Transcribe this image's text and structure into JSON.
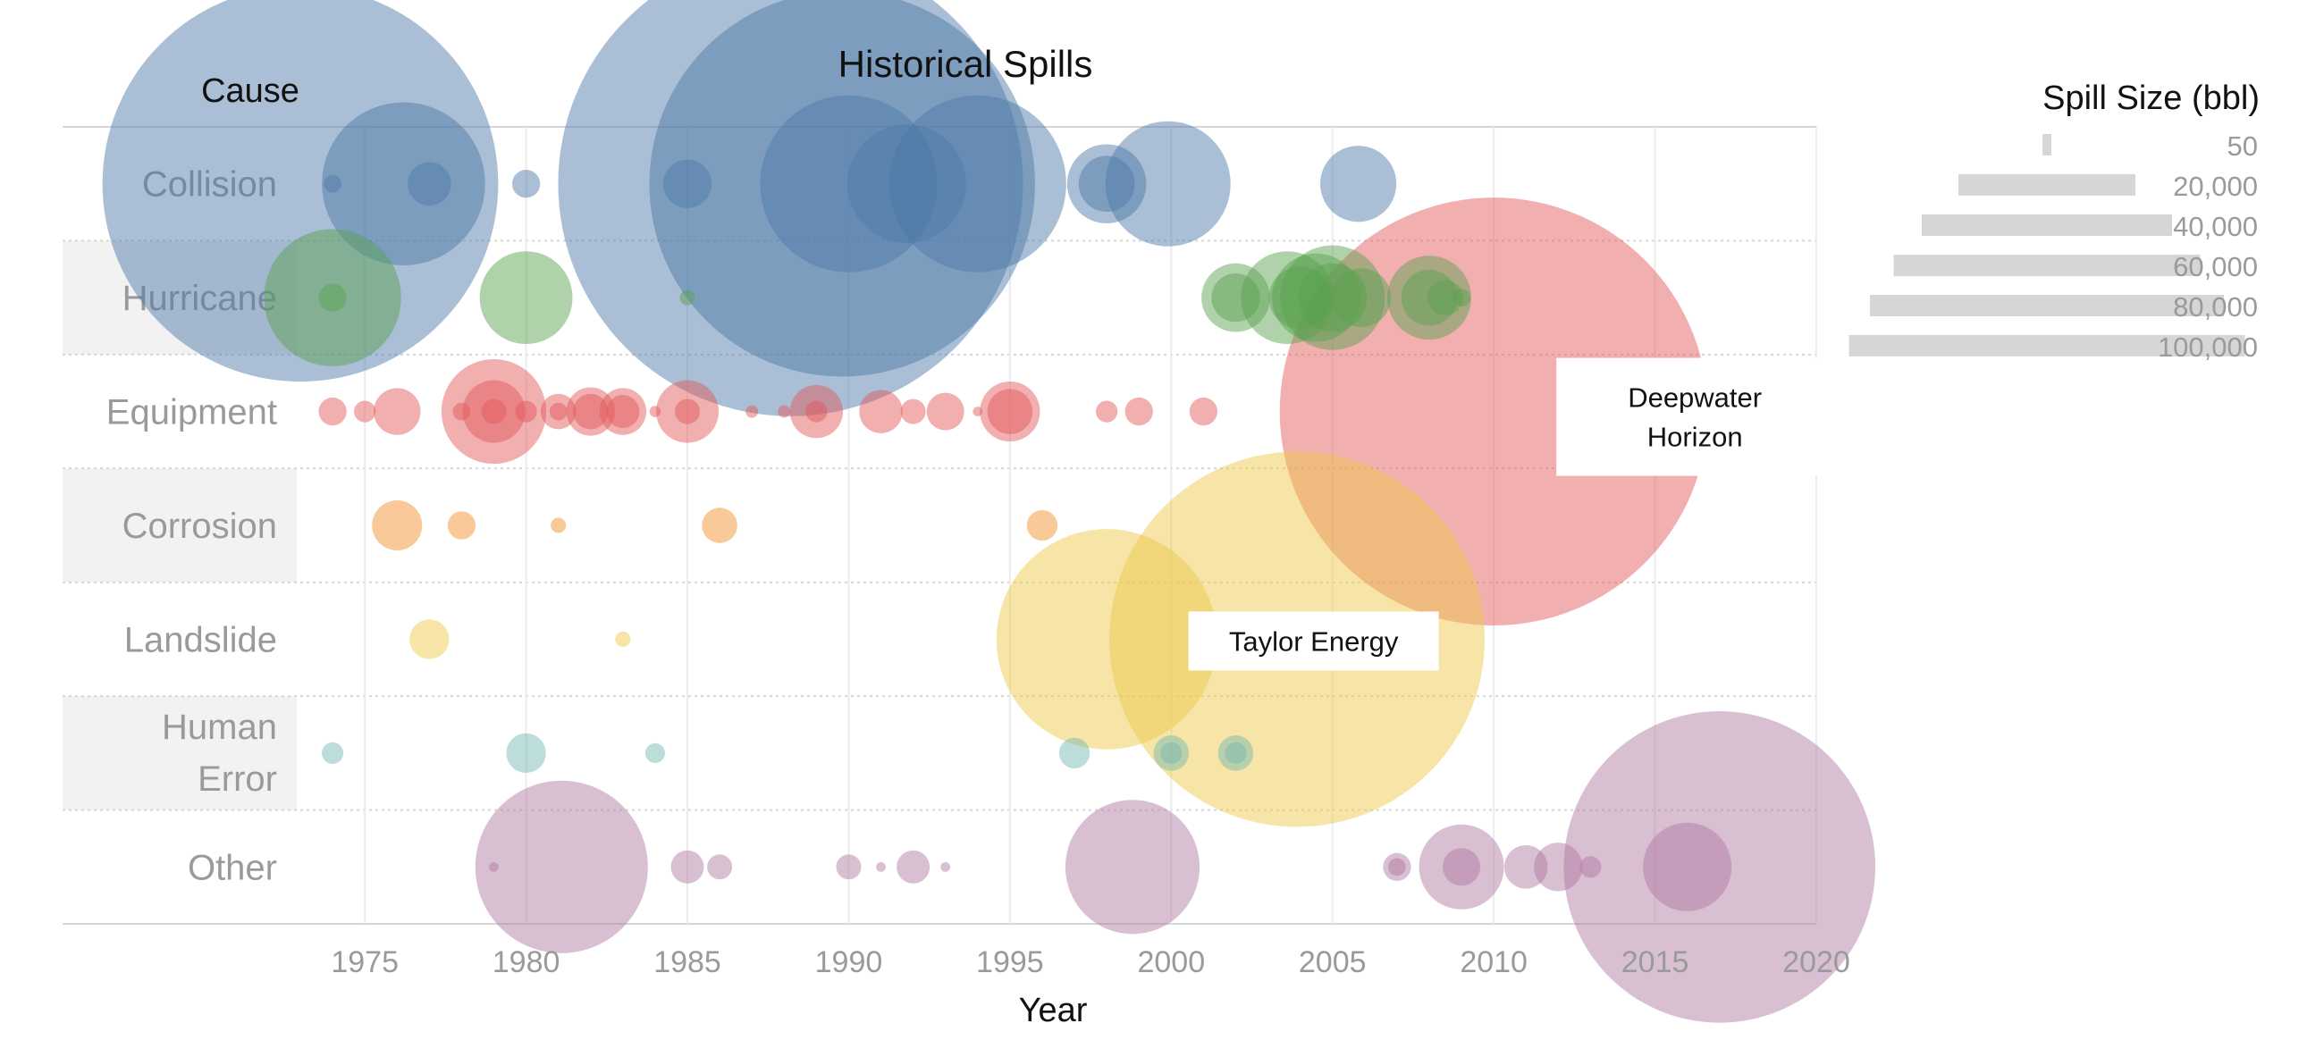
{
  "chart_data": {
    "type": "scatter",
    "title": "Historical Spills",
    "y_header": "Cause",
    "xlabel": "Year",
    "xlim": [
      1973,
      2020
    ],
    "x_ticks": [
      1975,
      1980,
      1985,
      1990,
      1995,
      2000,
      2005,
      2010,
      2015,
      2020
    ],
    "grid": true,
    "categories": [
      "Collision",
      "Hurricane",
      "Equipment",
      "Corrosion",
      "Landslide",
      "Human Error",
      "Other"
    ],
    "colors": {
      "Collision": "#4e79a7",
      "Hurricane": "#59a14f",
      "Equipment": "#e15759",
      "Corrosion": "#f28e2b",
      "Landslide": "#edc948",
      "Human Error": "#76b7b2",
      "Other": "#b07aa1"
    },
    "size_legend": {
      "title": "Spill Size (bbl)",
      "placement": "top-right",
      "entries": [
        {
          "label": "50",
          "value": 50
        },
        {
          "label": "20,000",
          "value": 20000
        },
        {
          "label": "40,000",
          "value": 40000
        },
        {
          "label": "60,000",
          "value": 60000
        },
        {
          "label": "80,000",
          "value": 80000
        },
        {
          "label": "100,000",
          "value": 100000
        }
      ]
    },
    "annotations": [
      {
        "text": "Deepwater Horizon",
        "x": 2010,
        "category": "Equipment"
      },
      {
        "text": "Taylor Energy",
        "x": 2004,
        "category": "Landslide"
      }
    ],
    "points": [
      {
        "category": "Collision",
        "x": 1973,
        "size": 100000
      },
      {
        "category": "Collision",
        "x": 1974,
        "size": 200
      },
      {
        "category": "Collision",
        "x": 1976.2,
        "size": 17000
      },
      {
        "category": "Collision",
        "x": 1977,
        "size": 1200
      },
      {
        "category": "Collision",
        "x": 1980,
        "size": 500
      },
      {
        "category": "Collision",
        "x": 1985,
        "size": 1500
      },
      {
        "category": "Collision",
        "x": 1988.2,
        "size": 138000
      },
      {
        "category": "Collision",
        "x": 1989.8,
        "size": 95000
      },
      {
        "category": "Collision",
        "x": 1990,
        "size": 20000
      },
      {
        "category": "Collision",
        "x": 1991.8,
        "size": 9000
      },
      {
        "category": "Collision",
        "x": 1994,
        "size": 20000
      },
      {
        "category": "Collision",
        "x": 1998,
        "size": 4000
      },
      {
        "category": "Collision",
        "x": 1998,
        "size": 2000
      },
      {
        "category": "Collision",
        "x": 1999.9,
        "size": 10000
      },
      {
        "category": "Collision",
        "x": 2005.8,
        "size": 3700
      },
      {
        "category": "Hurricane",
        "x": 1974,
        "size": 12000
      },
      {
        "category": "Hurricane",
        "x": 1974,
        "size": 500
      },
      {
        "category": "Hurricane",
        "x": 1980,
        "size": 5500
      },
      {
        "category": "Hurricane",
        "x": 1985,
        "size": 150
      },
      {
        "category": "Hurricane",
        "x": 2002,
        "size": 3000
      },
      {
        "category": "Hurricane",
        "x": 2002,
        "size": 1500
      },
      {
        "category": "Hurricane",
        "x": 2003.6,
        "size": 5500
      },
      {
        "category": "Hurricane",
        "x": 2004,
        "size": 2500
      },
      {
        "category": "Hurricane",
        "x": 2004.5,
        "size": 5000
      },
      {
        "category": "Hurricane",
        "x": 2005,
        "size": 7000
      },
      {
        "category": "Hurricane",
        "x": 2005,
        "size": 3000
      },
      {
        "category": "Hurricane",
        "x": 2005.9,
        "size": 2200
      },
      {
        "category": "Hurricane",
        "x": 2008,
        "size": 4500
      },
      {
        "category": "Hurricane",
        "x": 2008,
        "size": 2000
      },
      {
        "category": "Hurricane",
        "x": 2008.5,
        "size": 800
      },
      {
        "category": "Hurricane",
        "x": 2009,
        "size": 200
      },
      {
        "category": "Equipment",
        "x": 1974,
        "size": 500
      },
      {
        "category": "Equipment",
        "x": 1975,
        "size": 300
      },
      {
        "category": "Equipment",
        "x": 1976,
        "size": 1400
      },
      {
        "category": "Equipment",
        "x": 1978,
        "size": 200
      },
      {
        "category": "Equipment",
        "x": 1979,
        "size": 7000
      },
      {
        "category": "Equipment",
        "x": 1979,
        "size": 2500
      },
      {
        "category": "Equipment",
        "x": 1979,
        "size": 400
      },
      {
        "category": "Equipment",
        "x": 1980,
        "size": 300
      },
      {
        "category": "Equipment",
        "x": 1981,
        "size": 800
      },
      {
        "category": "Equipment",
        "x": 1981,
        "size": 200
      },
      {
        "category": "Equipment",
        "x": 1982,
        "size": 1500
      },
      {
        "category": "Equipment",
        "x": 1982,
        "size": 800
      },
      {
        "category": "Equipment",
        "x": 1983,
        "size": 1400
      },
      {
        "category": "Equipment",
        "x": 1983,
        "size": 700
      },
      {
        "category": "Equipment",
        "x": 1984,
        "size": 80
      },
      {
        "category": "Equipment",
        "x": 1985,
        "size": 2500
      },
      {
        "category": "Equipment",
        "x": 1985,
        "size": 400
      },
      {
        "category": "Equipment",
        "x": 1987,
        "size": 100
      },
      {
        "category": "Equipment",
        "x": 1988,
        "size": 100
      },
      {
        "category": "Equipment",
        "x": 1989,
        "size": 1800
      },
      {
        "category": "Equipment",
        "x": 1989,
        "size": 300
      },
      {
        "category": "Equipment",
        "x": 1991,
        "size": 1200
      },
      {
        "category": "Equipment",
        "x": 1992,
        "size": 400
      },
      {
        "category": "Equipment",
        "x": 1993,
        "size": 900
      },
      {
        "category": "Equipment",
        "x": 1994,
        "size": 60
      },
      {
        "category": "Equipment",
        "x": 1995,
        "size": 2300
      },
      {
        "category": "Equipment",
        "x": 1995,
        "size": 1300
      },
      {
        "category": "Equipment",
        "x": 1998,
        "size": 300
      },
      {
        "category": "Equipment",
        "x": 1999,
        "size": 500
      },
      {
        "category": "Equipment",
        "x": 2001,
        "size": 500
      },
      {
        "category": "Equipment",
        "x": 2010,
        "size": 117000
      },
      {
        "category": "Equipment",
        "x": 2015.3,
        "size": 1000
      },
      {
        "category": "Corrosion",
        "x": 1976,
        "size": 1600
      },
      {
        "category": "Corrosion",
        "x": 1978,
        "size": 500
      },
      {
        "category": "Corrosion",
        "x": 1981,
        "size": 150
      },
      {
        "category": "Corrosion",
        "x": 1986,
        "size": 800
      },
      {
        "category": "Corrosion",
        "x": 1996,
        "size": 600
      },
      {
        "category": "Landslide",
        "x": 1977,
        "size": 1000
      },
      {
        "category": "Landslide",
        "x": 1983,
        "size": 150
      },
      {
        "category": "Landslide",
        "x": 1998,
        "size": 31000
      },
      {
        "category": "Landslide",
        "x": 2003.9,
        "size": 90000
      },
      {
        "category": "Human Error",
        "x": 1974,
        "size": 300
      },
      {
        "category": "Human Error",
        "x": 1980,
        "size": 1000
      },
      {
        "category": "Human Error",
        "x": 1984,
        "size": 250
      },
      {
        "category": "Human Error",
        "x": 1997,
        "size": 600
      },
      {
        "category": "Human Error",
        "x": 2000,
        "size": 800
      },
      {
        "category": "Human Error",
        "x": 2000,
        "size": 300
      },
      {
        "category": "Human Error",
        "x": 2002,
        "size": 800
      },
      {
        "category": "Human Error",
        "x": 2002,
        "size": 300
      },
      {
        "category": "Other",
        "x": 1979,
        "size": 60
      },
      {
        "category": "Other",
        "x": 1981.1,
        "size": 19000
      },
      {
        "category": "Other",
        "x": 1985,
        "size": 700
      },
      {
        "category": "Other",
        "x": 1986,
        "size": 400
      },
      {
        "category": "Other",
        "x": 1990,
        "size": 400
      },
      {
        "category": "Other",
        "x": 1991,
        "size": 60
      },
      {
        "category": "Other",
        "x": 1992,
        "size": 700
      },
      {
        "category": "Other",
        "x": 1993,
        "size": 60
      },
      {
        "category": "Other",
        "x": 1998.8,
        "size": 11500
      },
      {
        "category": "Other",
        "x": 2007,
        "size": 500
      },
      {
        "category": "Other",
        "x": 2007,
        "size": 200
      },
      {
        "category": "Other",
        "x": 2009,
        "size": 4600
      },
      {
        "category": "Other",
        "x": 2009,
        "size": 900
      },
      {
        "category": "Other",
        "x": 2011,
        "size": 1200
      },
      {
        "category": "Other",
        "x": 2012,
        "size": 1500
      },
      {
        "category": "Other",
        "x": 2013,
        "size": 300
      },
      {
        "category": "Other",
        "x": 2016,
        "size": 5000
      },
      {
        "category": "Other",
        "x": 2017,
        "size": 62000
      }
    ]
  }
}
